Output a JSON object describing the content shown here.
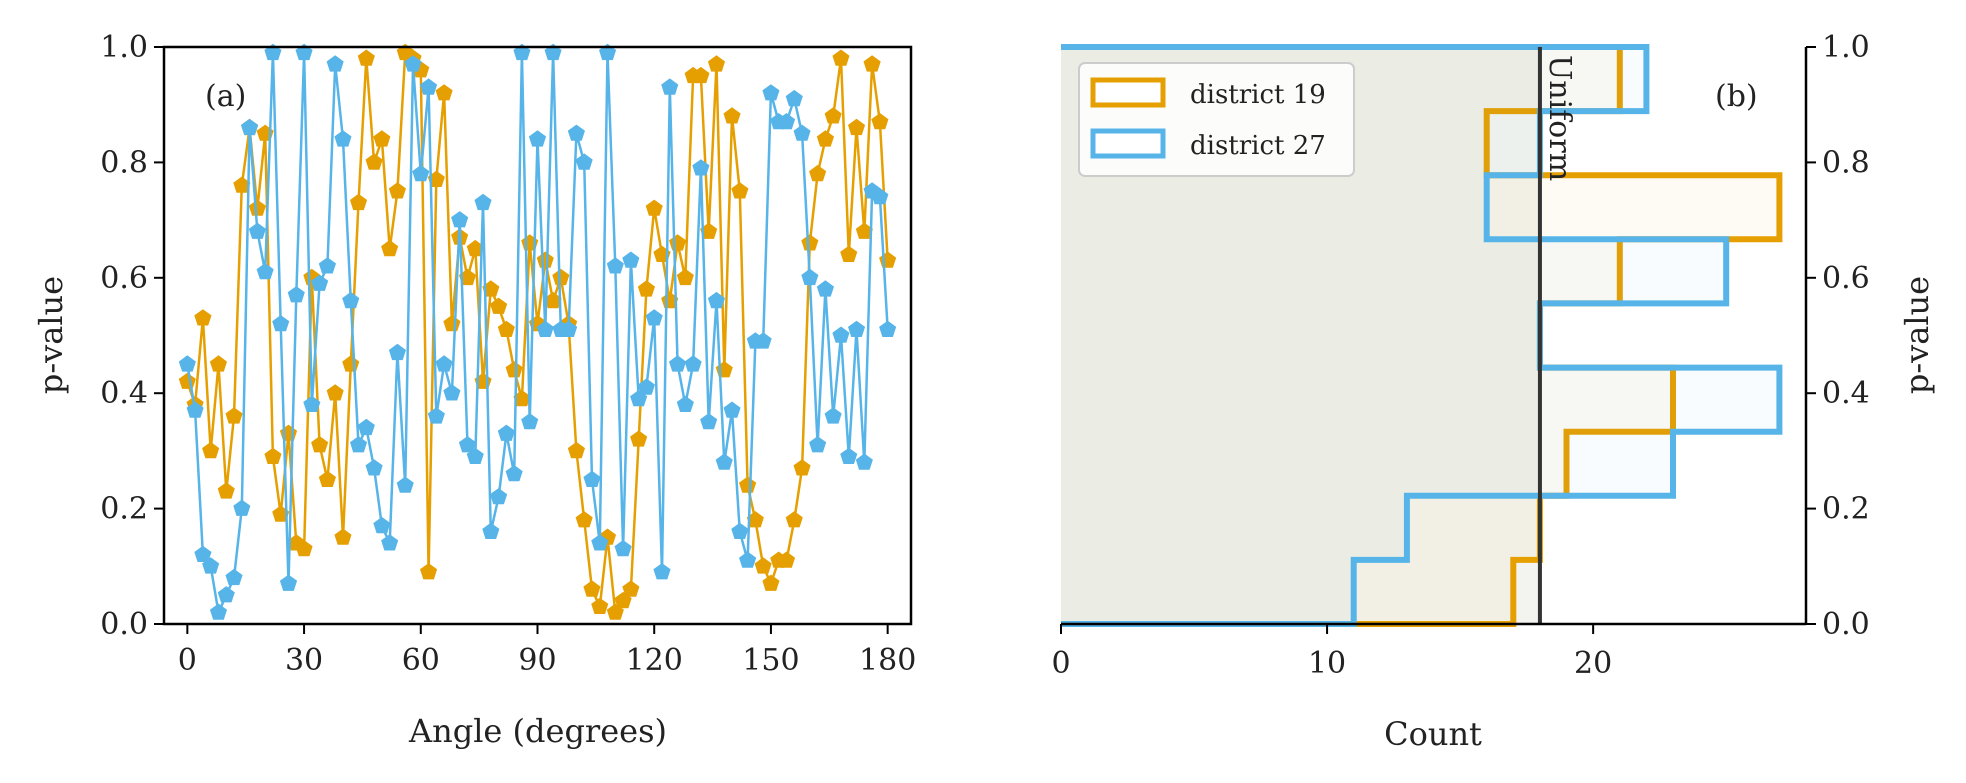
{
  "colors": {
    "district19": "#E69F00",
    "district27": "#56B4E9",
    "uniform_line": "#333333",
    "background": "#ffffff",
    "hist_fill": "#f3f4ef"
  },
  "chart_data": [
    {
      "panel": "a",
      "type": "line",
      "panel_label": "(a)",
      "xlabel": "Angle (degrees)",
      "ylabel": "p-value",
      "xlim": [
        -6,
        186
      ],
      "ylim": [
        0,
        1
      ],
      "xticks": [
        0,
        30,
        60,
        90,
        120,
        150,
        180
      ],
      "xtick_labels": [
        "0",
        "30",
        "60",
        "90",
        "120",
        "150",
        "180"
      ],
      "yticks": [
        0,
        0.2,
        0.4,
        0.6,
        0.8,
        1.0
      ],
      "ytick_labels": [
        "0.0",
        "0.2",
        "0.4",
        "0.6",
        "0.8",
        "1.0"
      ],
      "marker": "pentagon",
      "series": [
        {
          "name": "district 19",
          "color": "#E69F00",
          "x": [
            0,
            2,
            4,
            6,
            8,
            10,
            12,
            14,
            16,
            18,
            20,
            22,
            24,
            26,
            28,
            30,
            32,
            34,
            36,
            38,
            40,
            42,
            44,
            46,
            48,
            50,
            52,
            54,
            56,
            58,
            60,
            62,
            64,
            66,
            68,
            70,
            72,
            74,
            76,
            78,
            80,
            82,
            84,
            86,
            88,
            90,
            92,
            94,
            96,
            98,
            100,
            102,
            104,
            106,
            108,
            110,
            112,
            114,
            116,
            118,
            120,
            122,
            124,
            126,
            128,
            130,
            132,
            134,
            136,
            138,
            140,
            142,
            144,
            146,
            148,
            150,
            152,
            154,
            156,
            158,
            160,
            162,
            164,
            166,
            168,
            170,
            172,
            174,
            176,
            178,
            180
          ],
          "values": [
            0.42,
            0.38,
            0.53,
            0.3,
            0.45,
            0.23,
            0.36,
            0.76,
            0.86,
            0.72,
            0.85,
            0.29,
            0.19,
            0.33,
            0.14,
            0.13,
            0.6,
            0.31,
            0.25,
            0.4,
            0.15,
            0.45,
            0.73,
            0.98,
            0.8,
            0.84,
            0.65,
            0.75,
            0.99,
            0.98,
            0.96,
            0.09,
            0.77,
            0.92,
            0.52,
            0.67,
            0.6,
            0.65,
            0.42,
            0.58,
            0.55,
            0.51,
            0.44,
            0.39,
            0.66,
            0.52,
            0.63,
            0.56,
            0.6,
            0.52,
            0.3,
            0.18,
            0.06,
            0.03,
            0.15,
            0.02,
            0.04,
            0.06,
            0.32,
            0.58,
            0.72,
            0.64,
            0.56,
            0.66,
            0.6,
            0.95,
            0.95,
            0.68,
            0.97,
            0.44,
            0.88,
            0.75,
            0.24,
            0.18,
            0.1,
            0.07,
            0.11,
            0.11,
            0.18,
            0.27,
            0.66,
            0.78,
            0.84,
            0.88,
            0.98,
            0.64,
            0.86,
            0.68,
            0.97,
            0.87,
            0.63
          ]
        },
        {
          "name": "district 27",
          "color": "#56B4E9",
          "x": [
            0,
            2,
            4,
            6,
            8,
            10,
            12,
            14,
            16,
            18,
            20,
            22,
            24,
            26,
            28,
            30,
            32,
            34,
            36,
            38,
            40,
            42,
            44,
            46,
            48,
            50,
            52,
            54,
            56,
            58,
            60,
            62,
            64,
            66,
            68,
            70,
            72,
            74,
            76,
            78,
            80,
            82,
            84,
            86,
            88,
            90,
            92,
            94,
            96,
            98,
            100,
            102,
            104,
            106,
            108,
            110,
            112,
            114,
            116,
            118,
            120,
            122,
            124,
            126,
            128,
            130,
            132,
            134,
            136,
            138,
            140,
            142,
            144,
            146,
            148,
            150,
            152,
            154,
            156,
            158,
            160,
            162,
            164,
            166,
            168,
            170,
            172,
            174,
            176,
            178,
            180
          ],
          "values": [
            0.45,
            0.37,
            0.12,
            0.1,
            0.02,
            0.05,
            0.08,
            0.2,
            0.86,
            0.68,
            0.61,
            0.99,
            0.52,
            0.07,
            0.57,
            0.99,
            0.38,
            0.59,
            0.62,
            0.97,
            0.84,
            0.56,
            0.31,
            0.34,
            0.27,
            0.17,
            0.14,
            0.47,
            0.24,
            0.97,
            0.78,
            0.93,
            0.36,
            0.45,
            0.4,
            0.7,
            0.31,
            0.29,
            0.73,
            0.16,
            0.22,
            0.33,
            0.26,
            0.99,
            0.35,
            0.84,
            0.51,
            0.99,
            0.51,
            0.51,
            0.85,
            0.8,
            0.25,
            0.14,
            0.99,
            0.62,
            0.13,
            0.63,
            0.39,
            0.41,
            0.53,
            0.09,
            0.93,
            0.45,
            0.38,
            0.45,
            0.79,
            0.35,
            0.56,
            0.28,
            0.37,
            0.16,
            0.11,
            0.49,
            0.49,
            0.92,
            0.87,
            0.87,
            0.91,
            0.85,
            0.6,
            0.31,
            0.58,
            0.36,
            0.5,
            0.29,
            0.51,
            0.28,
            0.75,
            0.74,
            0.51
          ]
        }
      ]
    },
    {
      "panel": "b",
      "type": "bar",
      "orientation": "horizontal step histogram",
      "panel_label": "(b)",
      "xlabel": "Count",
      "ylabel": "p-value",
      "ylabel_side": "right",
      "xlim": [
        0,
        28
      ],
      "ylim": [
        0,
        1
      ],
      "xticks": [
        0,
        10,
        20
      ],
      "xtick_labels": [
        "0",
        "10",
        "20"
      ],
      "yticks": [
        0,
        0.2,
        0.4,
        0.6,
        0.8,
        1.0
      ],
      "ytick_labels": [
        "0.0",
        "0.2",
        "0.4",
        "0.6",
        "0.8",
        "1.0"
      ],
      "bin_edges": [
        0,
        0.1111,
        0.2222,
        0.3333,
        0.4444,
        0.5556,
        0.6667,
        0.7778,
        0.8889,
        1.0
      ],
      "series": [
        {
          "name": "district 19",
          "color": "#E69F00",
          "counts": [
            17,
            18,
            19,
            23,
            18,
            21,
            27,
            16,
            21
          ]
        },
        {
          "name": "district 27",
          "color": "#56B4E9",
          "counts": [
            11,
            13,
            23,
            27,
            18,
            25,
            16,
            18,
            22
          ]
        }
      ],
      "uniform": {
        "value": 18,
        "label": "Uniform"
      },
      "legend": {
        "position": "upper left",
        "entries": [
          {
            "label": "district 19",
            "color": "#E69F00"
          },
          {
            "label": "district 27",
            "color": "#56B4E9"
          }
        ]
      }
    }
  ]
}
